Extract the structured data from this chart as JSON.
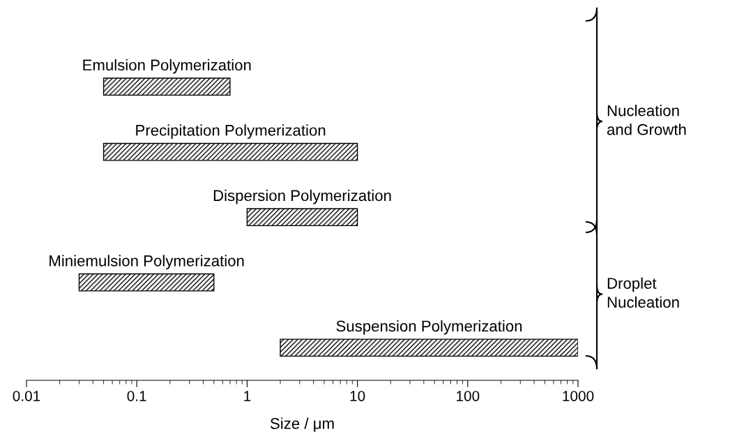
{
  "chart_data": {
    "type": "bar",
    "orientation": "horizontal",
    "log": "x",
    "categories": [
      "Emulsion Polymerization",
      "Precipitation Polymerization",
      "Dispersion Polymerization",
      "Miniemulsion Polymerization",
      "Suspension Polymerization"
    ],
    "base": [
      0.05,
      0.05,
      1,
      0.03,
      2
    ],
    "values": [
      0.65,
      9.95,
      9,
      0.47,
      998
    ],
    "color": "#000000",
    "xlim": [
      0.01,
      1000
    ],
    "xticks": [
      0.01,
      0.1,
      1,
      10,
      100,
      1000
    ],
    "xlabel": "Size / μm",
    "annotations": [
      "Nucleation\nand Growth",
      "Droplet\nNucleation"
    ],
    "grid": false,
    "legend": false
  }
}
